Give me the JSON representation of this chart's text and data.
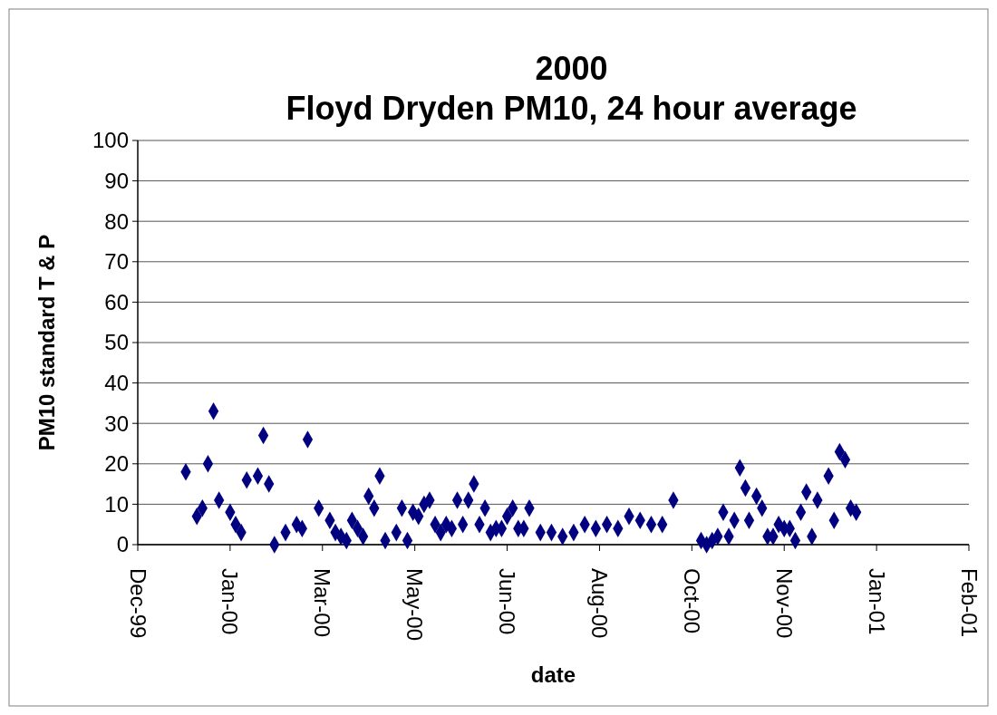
{
  "chart_data": {
    "type": "scatter",
    "title": "2000\nFloyd Dryden PM10, 24 hour average",
    "xlabel": "date",
    "ylabel": "PM10 standard T & P",
    "x": [
      "2000-01-01",
      "2000-01-07",
      "2000-01-10",
      "2000-01-13",
      "2000-01-16",
      "2000-01-19",
      "2000-01-25",
      "2000-01-28",
      "2000-01-31",
      "2000-02-03",
      "2000-02-09",
      "2000-02-12",
      "2000-02-15",
      "2000-02-18",
      "2000-02-24",
      "2000-03-01",
      "2000-03-04",
      "2000-03-07",
      "2000-03-13",
      "2000-03-19",
      "2000-03-22",
      "2000-03-25",
      "2000-03-28",
      "2000-03-31",
      "2000-04-03",
      "2000-04-06",
      "2000-04-09",
      "2000-04-12",
      "2000-04-15",
      "2000-04-18",
      "2000-04-24",
      "2000-04-27",
      "2000-04-30",
      "2000-05-03",
      "2000-05-06",
      "2000-05-09",
      "2000-05-12",
      "2000-05-15",
      "2000-05-18",
      "2000-05-21",
      "2000-05-24",
      "2000-05-27",
      "2000-05-30",
      "2000-06-02",
      "2000-06-05",
      "2000-06-08",
      "2000-06-11",
      "2000-06-14",
      "2000-06-17",
      "2000-06-20",
      "2000-06-23",
      "2000-06-26",
      "2000-06-29",
      "2000-07-02",
      "2000-07-05",
      "2000-07-11",
      "2000-07-17",
      "2000-07-23",
      "2000-07-29",
      "2000-08-04",
      "2000-08-10",
      "2000-08-16",
      "2000-08-22",
      "2000-08-28",
      "2000-09-03",
      "2000-09-09",
      "2000-09-15",
      "2000-09-21",
      "2000-10-06",
      "2000-10-09",
      "2000-10-12",
      "2000-10-15",
      "2000-10-18",
      "2000-10-21",
      "2000-10-24",
      "2000-10-27",
      "2000-10-30",
      "2000-11-01",
      "2000-11-05",
      "2000-11-08",
      "2000-11-11",
      "2000-11-14",
      "2000-11-17",
      "2000-11-20",
      "2000-11-23",
      "2000-11-26",
      "2000-11-29",
      "2000-12-02",
      "2000-12-05",
      "2000-12-08",
      "2000-12-14",
      "2000-12-17",
      "2000-12-20",
      "2000-12-23",
      "2000-12-26",
      "2000-12-29"
    ],
    "series": [
      {
        "color": "#000080",
        "values": [
          18,
          7,
          9,
          20,
          33,
          11,
          8,
          5,
          3,
          16,
          17,
          27,
          15,
          0,
          3,
          5,
          4,
          26,
          9,
          6,
          3,
          2,
          1,
          6,
          4,
          2,
          12,
          9,
          17,
          1,
          3,
          9,
          1,
          8,
          7,
          10,
          11,
          5,
          3,
          5,
          4,
          11,
          5,
          11,
          15,
          5,
          9,
          3,
          4,
          4,
          7,
          9,
          4,
          4,
          9,
          3,
          3,
          2,
          3,
          5,
          4,
          5,
          4,
          7,
          6,
          5,
          5,
          11,
          1,
          0,
          1,
          2,
          8,
          2,
          6,
          19,
          14,
          6,
          12,
          9,
          2,
          2,
          5,
          4,
          4,
          1,
          8,
          13,
          2,
          11,
          17,
          6,
          23,
          21,
          9,
          8
        ]
      }
    ],
    "xlim": [
      "1999-12-06",
      "2001-02-28"
    ],
    "xticks": [
      {
        "value": "1999-12-06",
        "label": "Dec-99"
      },
      {
        "value": "2000-01-25",
        "label": "Jan-00"
      },
      {
        "value": "2000-03-15",
        "label": "Mar-00"
      },
      {
        "value": "2000-05-04",
        "label": "May-00"
      },
      {
        "value": "2000-06-23",
        "label": "Jun-00"
      },
      {
        "value": "2000-08-12",
        "label": "Aug-00"
      },
      {
        "value": "2000-10-01",
        "label": "Oct-00"
      },
      {
        "value": "2000-11-20",
        "label": "Nov-00"
      },
      {
        "value": "2001-01-09",
        "label": "Jan-01"
      },
      {
        "value": "2001-02-28",
        "label": "Feb-01"
      }
    ],
    "ylim": [
      0,
      100
    ],
    "yticks": [
      0,
      10,
      20,
      30,
      40,
      50,
      60,
      70,
      80,
      90,
      100
    ],
    "grid": "y",
    "marker": "diamond"
  }
}
